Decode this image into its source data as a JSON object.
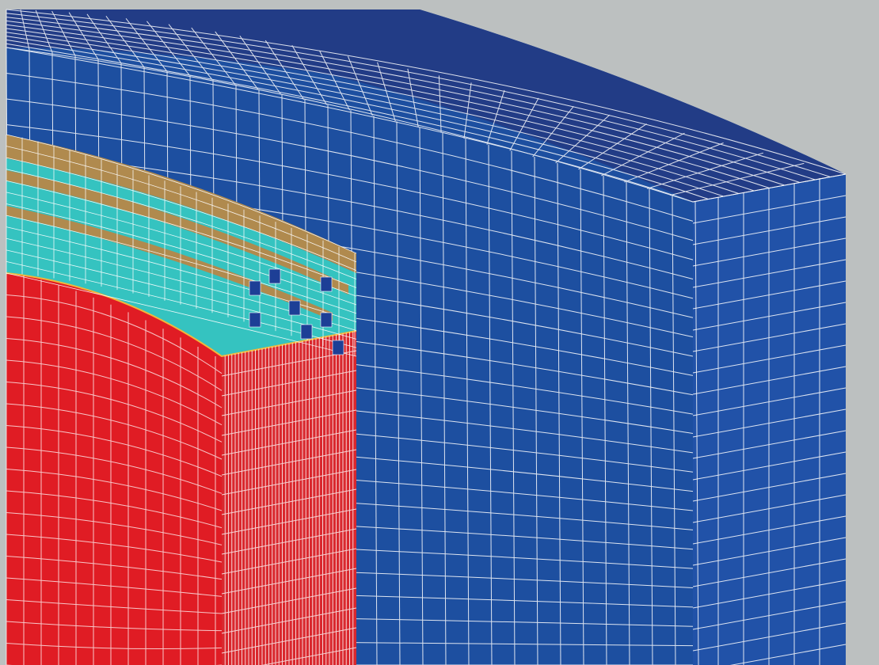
{
  "figure": {
    "kind": "finite-element mesh cutaway (no printed text)",
    "colors": {
      "background": "#bcc0c0",
      "outer_shell_face": "#1d4fa0",
      "outer_shell_top": "#223c86",
      "core": "#e01c24",
      "core_side": "#cf2228",
      "insulation": "#35c3c0",
      "layer_band": "#b08a4e",
      "grid_line": "#ffffff",
      "accent_line": "#f2b63a"
    },
    "regions": [
      {
        "id": "outer-shell",
        "color": "#1d4fa0"
      },
      {
        "id": "outer-shell-top-surface",
        "color": "#223c86"
      },
      {
        "id": "red-core",
        "color": "#e01c24"
      },
      {
        "id": "layered-winding",
        "color": "#b08a4e"
      },
      {
        "id": "insulation-band",
        "color": "#35c3c0"
      }
    ]
  }
}
